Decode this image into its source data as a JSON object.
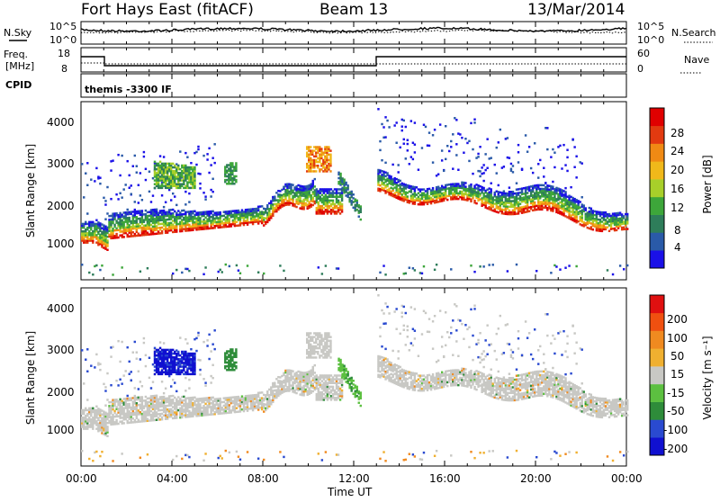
{
  "header": {
    "station": "Fort Hays East (fitACF)",
    "beam": "Beam 13",
    "date": "13/Mar/2014"
  },
  "top_panels": {
    "nsky_label": "N.Sky",
    "nsky_ticks": [
      "10^5",
      "10^0"
    ],
    "nsearch_label": "N.Search",
    "nsearch_ticks": [
      "10^5",
      "10^0"
    ],
    "freq_label_1": "Freq.",
    "freq_label_2": "[MHz]",
    "freq_ticks": [
      "18",
      "8"
    ],
    "nave_label": "Nave",
    "nave_ticks": [
      "60",
      "0"
    ],
    "cpid_label": "CPID",
    "cpid_text": "themis -3300 IF"
  },
  "chart_data": [
    {
      "type": "heatmap",
      "name": "power",
      "ylabel": "Slant Range [km]",
      "yticks": [
        "4000",
        "3000",
        "2000",
        "1000"
      ],
      "ylim": [
        200,
        4500
      ],
      "colorbar_label": "Power [dB]",
      "colorbar_ticks": [
        "28",
        "24",
        "20",
        "16",
        "12",
        "8",
        "4"
      ],
      "colors": [
        "#1a10e8",
        "#2a5aa8",
        "#2e7d5a",
        "#3da63a",
        "#a8cf2a",
        "#f0b81a",
        "#f08a14",
        "#e23a10",
        "#e00000"
      ]
    },
    {
      "type": "heatmap",
      "name": "velocity",
      "ylabel": "Slant Range [km]",
      "yticks": [
        "4000",
        "3000",
        "2000",
        "1000"
      ],
      "ylim": [
        200,
        4500
      ],
      "colorbar_label": "Velocity [m s⁻¹]",
      "colorbar_ticks": [
        "200",
        "100",
        "50",
        "15",
        "-15",
        "-50",
        "-100",
        "-200"
      ],
      "colors": [
        "#1010d0",
        "#2a4ad0",
        "#2e8c3a",
        "#5cc040",
        "#c8c8c4",
        "#f0b030",
        "#f08a20",
        "#f05010",
        "#e01010"
      ]
    }
  ],
  "xaxis": {
    "label": "Time UT",
    "ticks": [
      "00:00",
      "04:00",
      "08:00",
      "12:00",
      "16:00",
      "20:00",
      "00:00"
    ]
  }
}
